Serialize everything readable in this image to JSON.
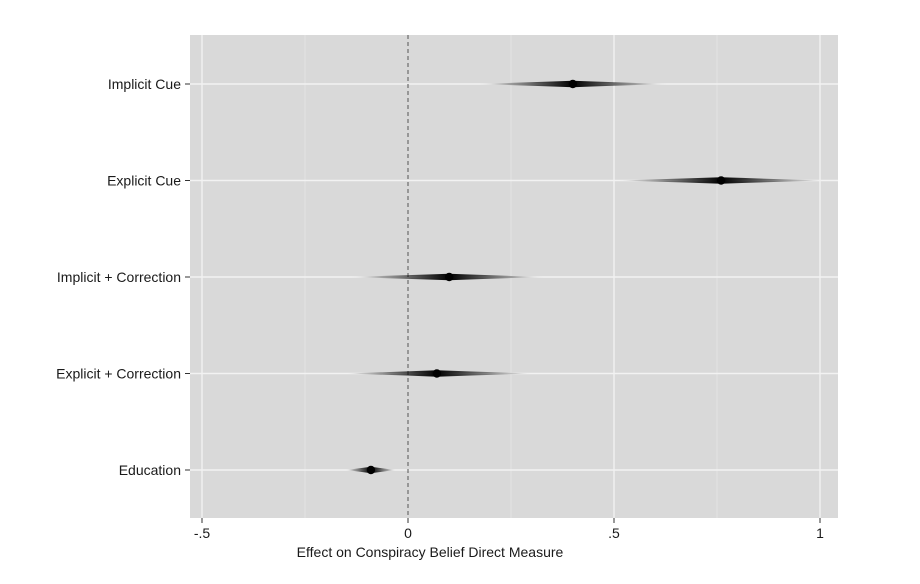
{
  "chart_data": {
    "type": "scatter",
    "title": "",
    "xlabel": "Effect on Conspiracy Belief Direct Measure",
    "ylabel": "",
    "xlim": [
      -0.5,
      1.04
    ],
    "grid": true,
    "reference_line": 0,
    "x_ticks": [
      {
        "value": -0.5,
        "label": "-.5"
      },
      {
        "value": 0,
        "label": "0"
      },
      {
        "value": 0.5,
        "label": ".5"
      },
      {
        "value": 1,
        "label": "1"
      }
    ],
    "categories": [
      "Implicit Cue",
      "Explicit Cue",
      "Implicit + Correction",
      "Explicit + Correction",
      "Education"
    ],
    "points": [
      {
        "category": "Implicit Cue",
        "estimate": 0.4,
        "ci_low": 0.17,
        "ci_high": 0.63
      },
      {
        "category": "Explicit Cue",
        "estimate": 0.76,
        "ci_low": 0.51,
        "ci_high": 1.01
      },
      {
        "category": "Implicit + Correction",
        "estimate": 0.1,
        "ci_low": -0.14,
        "ci_high": 0.33
      },
      {
        "category": "Explicit + Correction",
        "estimate": 0.07,
        "ci_low": -0.15,
        "ci_high": 0.3
      },
      {
        "category": "Education",
        "estimate": -0.09,
        "ci_low": -0.15,
        "ci_high": -0.03
      }
    ]
  }
}
